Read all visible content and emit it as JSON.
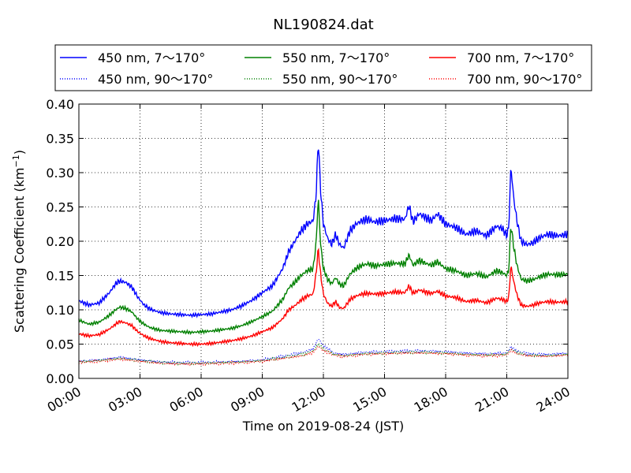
{
  "chart_data": {
    "type": "line",
    "title": "NL190824.dat",
    "xlabel": "Time on 2019-08-24 (JST)",
    "ylabel": "Scattering Coefficient (km",
    "ylabel_sup": "−1",
    "ylabel_close": ")",
    "xlim": [
      0,
      24
    ],
    "ylim": [
      0.0,
      0.4
    ],
    "grid": true,
    "legend_position": "top",
    "x_ticks": [
      0,
      3,
      6,
      9,
      12,
      15,
      18,
      21,
      24
    ],
    "x_tick_labels": [
      "00:00",
      "03:00",
      "06:00",
      "09:00",
      "12:00",
      "15:00",
      "18:00",
      "21:00",
      "24:00"
    ],
    "y_ticks": [
      0.0,
      0.05,
      0.1,
      0.15,
      0.2,
      0.25,
      0.3,
      0.35,
      0.4
    ],
    "y_tick_labels": [
      "0.00",
      "0.05",
      "0.10",
      "0.15",
      "0.20",
      "0.25",
      "0.30",
      "0.35",
      "0.40"
    ],
    "series": [
      {
        "name": "450 nm, 7～170°",
        "color": "#0000ff",
        "style": "solid",
        "x": [
          0,
          0.5,
          1,
          1.5,
          1.8,
          2,
          2.3,
          2.6,
          2.9,
          3.2,
          3.5,
          4,
          4.5,
          5,
          5.5,
          6,
          6.5,
          7,
          7.5,
          8,
          8.5,
          9,
          9.5,
          10,
          10.3,
          10.6,
          10.9,
          11.2,
          11.5,
          11.65,
          11.75,
          11.85,
          12,
          12.2,
          12.4,
          12.6,
          12.8,
          13,
          13.3,
          13.6,
          13.9,
          14.2,
          14.5,
          15,
          15.5,
          16,
          16.2,
          16.4,
          16.7,
          17,
          17.3,
          17.6,
          18,
          18.5,
          19,
          19.5,
          20,
          20.5,
          20.8,
          21,
          21.1,
          21.2,
          21.35,
          21.5,
          21.7,
          22,
          22.3,
          22.6,
          23,
          23.5,
          24
        ],
        "y": [
          0.113,
          0.107,
          0.11,
          0.125,
          0.138,
          0.142,
          0.14,
          0.133,
          0.118,
          0.107,
          0.101,
          0.096,
          0.094,
          0.093,
          0.092,
          0.093,
          0.094,
          0.097,
          0.1,
          0.106,
          0.114,
          0.125,
          0.135,
          0.16,
          0.185,
          0.2,
          0.215,
          0.225,
          0.23,
          0.27,
          0.35,
          0.28,
          0.225,
          0.205,
          0.195,
          0.21,
          0.195,
          0.19,
          0.215,
          0.225,
          0.23,
          0.232,
          0.228,
          0.23,
          0.233,
          0.232,
          0.252,
          0.228,
          0.24,
          0.235,
          0.23,
          0.24,
          0.225,
          0.22,
          0.21,
          0.215,
          0.208,
          0.222,
          0.218,
          0.208,
          0.22,
          0.31,
          0.26,
          0.23,
          0.2,
          0.195,
          0.198,
          0.205,
          0.21,
          0.208,
          0.21
        ]
      },
      {
        "name": "550 nm, 7～170°",
        "color": "#008000",
        "style": "solid",
        "x": [
          0,
          0.5,
          1,
          1.5,
          1.8,
          2,
          2.3,
          2.6,
          2.9,
          3.2,
          3.5,
          4,
          4.5,
          5,
          5.5,
          6,
          6.5,
          7,
          7.5,
          8,
          8.5,
          9,
          9.5,
          10,
          10.3,
          10.6,
          10.9,
          11.2,
          11.5,
          11.65,
          11.75,
          11.85,
          12,
          12.2,
          12.4,
          12.6,
          12.8,
          13,
          13.3,
          13.6,
          13.9,
          14.2,
          14.5,
          15,
          15.5,
          16,
          16.2,
          16.4,
          16.7,
          17,
          17.3,
          17.6,
          18,
          18.5,
          19,
          19.5,
          20,
          20.5,
          20.8,
          21,
          21.1,
          21.2,
          21.35,
          21.5,
          21.7,
          22,
          22.3,
          22.6,
          23,
          23.5,
          24
        ],
        "y": [
          0.085,
          0.079,
          0.082,
          0.092,
          0.1,
          0.104,
          0.102,
          0.097,
          0.086,
          0.079,
          0.074,
          0.07,
          0.069,
          0.068,
          0.067,
          0.068,
          0.069,
          0.071,
          0.073,
          0.077,
          0.083,
          0.09,
          0.098,
          0.115,
          0.132,
          0.14,
          0.15,
          0.157,
          0.16,
          0.2,
          0.265,
          0.2,
          0.16,
          0.145,
          0.138,
          0.147,
          0.137,
          0.135,
          0.152,
          0.16,
          0.165,
          0.167,
          0.164,
          0.166,
          0.168,
          0.167,
          0.18,
          0.165,
          0.172,
          0.168,
          0.165,
          0.17,
          0.16,
          0.157,
          0.15,
          0.153,
          0.148,
          0.157,
          0.154,
          0.15,
          0.158,
          0.225,
          0.19,
          0.165,
          0.145,
          0.142,
          0.144,
          0.148,
          0.152,
          0.151,
          0.152
        ]
      },
      {
        "name": "700 nm, 7～170°",
        "color": "#ff0000",
        "style": "solid",
        "x": [
          0,
          0.5,
          1,
          1.5,
          1.8,
          2,
          2.3,
          2.6,
          2.9,
          3.2,
          3.5,
          4,
          4.5,
          5,
          5.5,
          6,
          6.5,
          7,
          7.5,
          8,
          8.5,
          9,
          9.5,
          10,
          10.3,
          10.6,
          10.9,
          11.2,
          11.5,
          11.65,
          11.75,
          11.85,
          12,
          12.2,
          12.4,
          12.6,
          12.8,
          13,
          13.3,
          13.6,
          13.9,
          14.2,
          14.5,
          15,
          15.5,
          16,
          16.2,
          16.4,
          16.7,
          17,
          17.3,
          17.6,
          18,
          18.5,
          19,
          19.5,
          20,
          20.5,
          20.8,
          21,
          21.1,
          21.2,
          21.35,
          21.5,
          21.7,
          22,
          22.3,
          22.6,
          23,
          23.5,
          24
        ],
        "y": [
          0.065,
          0.062,
          0.064,
          0.072,
          0.079,
          0.083,
          0.081,
          0.077,
          0.068,
          0.062,
          0.058,
          0.054,
          0.052,
          0.051,
          0.05,
          0.05,
          0.051,
          0.053,
          0.055,
          0.058,
          0.062,
          0.068,
          0.074,
          0.087,
          0.1,
          0.106,
          0.114,
          0.12,
          0.123,
          0.155,
          0.19,
          0.155,
          0.123,
          0.11,
          0.105,
          0.112,
          0.103,
          0.102,
          0.115,
          0.12,
          0.123,
          0.124,
          0.123,
          0.124,
          0.126,
          0.125,
          0.135,
          0.124,
          0.129,
          0.126,
          0.124,
          0.127,
          0.12,
          0.118,
          0.112,
          0.114,
          0.11,
          0.117,
          0.115,
          0.112,
          0.118,
          0.165,
          0.14,
          0.122,
          0.107,
          0.105,
          0.107,
          0.11,
          0.112,
          0.111,
          0.112
        ]
      },
      {
        "name": "450 nm, 90～170°",
        "color": "#0000ff",
        "style": "dotted",
        "x": [
          0,
          1,
          2,
          3,
          4,
          5,
          6,
          7,
          8,
          9,
          10,
          11,
          11.5,
          11.75,
          12,
          12.5,
          13,
          14,
          15,
          16,
          17,
          18,
          19,
          20,
          21,
          21.2,
          21.5,
          22,
          23,
          24
        ],
        "y": [
          0.025,
          0.027,
          0.031,
          0.027,
          0.024,
          0.023,
          0.023,
          0.024,
          0.025,
          0.027,
          0.032,
          0.038,
          0.043,
          0.058,
          0.048,
          0.037,
          0.035,
          0.038,
          0.039,
          0.04,
          0.04,
          0.039,
          0.037,
          0.036,
          0.037,
          0.046,
          0.04,
          0.036,
          0.035,
          0.037
        ]
      },
      {
        "name": "550 nm, 90～170°",
        "color": "#008000",
        "style": "dotted",
        "x": [
          0,
          1,
          2,
          3,
          4,
          5,
          6,
          7,
          8,
          9,
          10,
          11,
          11.5,
          11.75,
          12,
          12.5,
          13,
          14,
          15,
          16,
          17,
          18,
          19,
          20,
          21,
          21.2,
          21.5,
          22,
          23,
          24
        ],
        "y": [
          0.024,
          0.026,
          0.029,
          0.026,
          0.023,
          0.022,
          0.022,
          0.023,
          0.024,
          0.026,
          0.03,
          0.035,
          0.04,
          0.05,
          0.043,
          0.035,
          0.033,
          0.036,
          0.037,
          0.038,
          0.038,
          0.037,
          0.035,
          0.034,
          0.035,
          0.043,
          0.038,
          0.034,
          0.033,
          0.035
        ]
      },
      {
        "name": "700 nm, 90～170°",
        "color": "#ff0000",
        "style": "dotted",
        "x": [
          0,
          1,
          2,
          3,
          4,
          5,
          6,
          7,
          8,
          9,
          10,
          11,
          11.5,
          11.75,
          12,
          12.5,
          13,
          14,
          15,
          16,
          17,
          18,
          19,
          20,
          21,
          21.2,
          21.5,
          22,
          23,
          24
        ],
        "y": [
          0.023,
          0.025,
          0.028,
          0.025,
          0.022,
          0.021,
          0.021,
          0.022,
          0.023,
          0.025,
          0.029,
          0.033,
          0.038,
          0.047,
          0.041,
          0.034,
          0.032,
          0.035,
          0.036,
          0.037,
          0.037,
          0.036,
          0.034,
          0.033,
          0.034,
          0.041,
          0.036,
          0.033,
          0.032,
          0.034
        ]
      }
    ],
    "legend_order": [
      0,
      3,
      1,
      4,
      2,
      5
    ]
  }
}
